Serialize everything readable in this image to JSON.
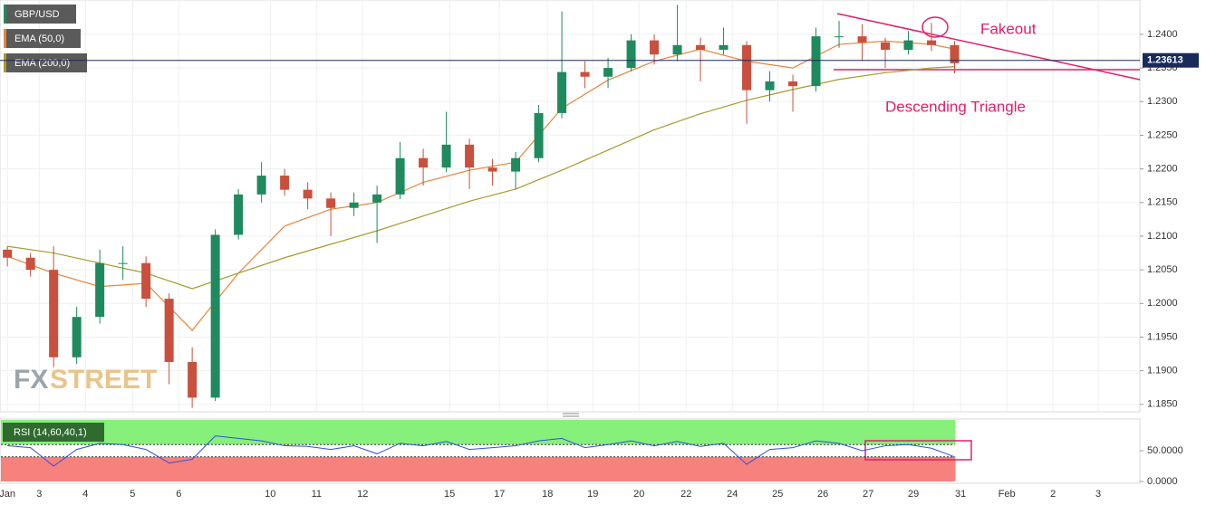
{
  "chart_data": [
    {
      "type": "candlestick",
      "title": "GBP/USD",
      "x": [
        0,
        0.5,
        1,
        1.5,
        2,
        2.5,
        3,
        3.5,
        4,
        4.5,
        5,
        5.5,
        6,
        6.5,
        7,
        7.5,
        8,
        8.5,
        9,
        9.5,
        10,
        10.5,
        11,
        11.5,
        12,
        12.5,
        13,
        13.5,
        14,
        14.5,
        15,
        15.5,
        16,
        16.5,
        17,
        17.5,
        18,
        18.5,
        19,
        19.5,
        20,
        20.5
      ],
      "open": [
        1.208,
        1.2068,
        1.205,
        1.192,
        1.198,
        1.206,
        1.206,
        1.2007,
        1.1913,
        1.186,
        1.2102,
        1.2162,
        1.219,
        1.2169,
        1.2156,
        1.2142,
        1.215,
        1.2162,
        1.2216,
        1.2202,
        1.2236,
        1.2202,
        1.2196,
        1.2216,
        1.2283,
        1.2344,
        1.2337,
        1.235,
        1.2391,
        1.237,
        1.2384,
        1.2377,
        1.2384,
        1.2317,
        1.233,
        1.2323,
        1.2397,
        1.2397,
        1.2388,
        1.2377,
        1.2391,
        1.2384
      ],
      "high": [
        1.2085,
        1.2075,
        1.2085,
        1.1995,
        1.208,
        1.2085,
        1.207,
        1.2015,
        1.1935,
        1.211,
        1.217,
        1.221,
        1.22,
        1.218,
        1.2165,
        1.2165,
        1.2175,
        1.224,
        1.223,
        1.2285,
        1.2245,
        1.2215,
        1.2225,
        1.2295,
        1.2434,
        1.236,
        1.2365,
        1.24,
        1.24,
        1.2444,
        1.2395,
        1.241,
        1.239,
        1.2345,
        1.234,
        1.241,
        1.242,
        1.2415,
        1.2395,
        1.2405,
        1.2417,
        1.239
      ],
      "low": [
        1.2055,
        1.204,
        1.1905,
        1.191,
        1.197,
        1.2035,
        1.1995,
        1.188,
        1.1845,
        1.1855,
        1.2095,
        1.215,
        1.216,
        1.214,
        1.21,
        1.213,
        1.209,
        1.2155,
        1.2175,
        1.2195,
        1.217,
        1.2175,
        1.217,
        1.221,
        1.2275,
        1.232,
        1.232,
        1.2345,
        1.2355,
        1.236,
        1.233,
        1.237,
        1.2267,
        1.23,
        1.2285,
        1.2315,
        1.238,
        1.236,
        1.235,
        1.237,
        1.2375,
        1.2342
      ],
      "close": [
        1.2068,
        1.205,
        1.192,
        1.198,
        1.206,
        1.206,
        1.2007,
        1.1913,
        1.186,
        1.2102,
        1.2162,
        1.219,
        1.2169,
        1.2156,
        1.2142,
        1.215,
        1.2162,
        1.2216,
        1.2202,
        1.2236,
        1.2202,
        1.2196,
        1.2216,
        1.2283,
        1.2344,
        1.2337,
        1.235,
        1.2391,
        1.237,
        1.2384,
        1.2377,
        1.2384,
        1.2317,
        1.233,
        1.2323,
        1.2397,
        1.2397,
        1.2388,
        1.2377,
        1.2391,
        1.2384,
        1.2357
      ],
      "up_color": "#1f8a5e",
      "down_color": "#c8503c",
      "lines": [
        {
          "name": "EMA (50,0)",
          "color": "#e8853a",
          "x": [
            0,
            1,
            2,
            3,
            4,
            5,
            6,
            7,
            8,
            9,
            10,
            11,
            12,
            13,
            14,
            15,
            16,
            17,
            18,
            19,
            20,
            20.5
          ],
          "values": [
            1.207,
            1.2045,
            1.2025,
            1.203,
            1.196,
            1.2045,
            1.2115,
            1.214,
            1.215,
            1.218,
            1.2198,
            1.221,
            1.229,
            1.2332,
            1.236,
            1.2378,
            1.236,
            1.235,
            1.2385,
            1.239,
            1.2385,
            1.2378
          ]
        },
        {
          "name": "EMA (200,0)",
          "color": "#a89a2c",
          "x": [
            0,
            1,
            2,
            3,
            4,
            5,
            6,
            7,
            8,
            9,
            10,
            11,
            12,
            13,
            14,
            15,
            16,
            17,
            18,
            19,
            20,
            20.5
          ],
          "values": [
            1.2085,
            1.2075,
            1.206,
            1.2045,
            1.2022,
            1.2045,
            1.2068,
            1.2088,
            1.2108,
            1.213,
            1.2152,
            1.217,
            1.2198,
            1.2228,
            1.2258,
            1.2282,
            1.2302,
            1.2318,
            1.2333,
            1.2343,
            1.235,
            1.2352
          ]
        }
      ],
      "last_price": 1.23613,
      "annotations": [
        "Fakeout",
        "Descending Triangle"
      ],
      "watermark": [
        "FX",
        "STREET"
      ],
      "xlim": [
        -0.16,
        24.51
      ],
      "xticks": [
        {
          "value": 0,
          "label": "Jan"
        },
        {
          "value": 0.69,
          "label": "3"
        },
        {
          "value": 1.69,
          "label": "4"
        },
        {
          "value": 2.71,
          "label": "5"
        },
        {
          "value": 3.71,
          "label": "6"
        },
        {
          "value": 5.69,
          "label": "10"
        },
        {
          "value": 6.69,
          "label": "11"
        },
        {
          "value": 7.69,
          "label": "12"
        },
        {
          "value": 9.57,
          "label": "15"
        },
        {
          "value": 10.65,
          "label": "17"
        },
        {
          "value": 11.69,
          "label": "18"
        },
        {
          "value": 12.67,
          "label": "19"
        },
        {
          "value": 13.67,
          "label": "20"
        },
        {
          "value": 14.69,
          "label": "22"
        },
        {
          "value": 15.69,
          "label": "24"
        },
        {
          "value": 16.67,
          "label": "25"
        },
        {
          "value": 17.65,
          "label": "26"
        },
        {
          "value": 18.63,
          "label": "27"
        },
        {
          "value": 19.61,
          "label": "29"
        },
        {
          "value": 20.63,
          "label": "31"
        },
        {
          "value": 21.63,
          "label": "Feb"
        },
        {
          "value": 22.63,
          "label": "2"
        },
        {
          "value": 23.61,
          "label": "3"
        }
      ],
      "ylim": [
        1.1839,
        1.2451
      ],
      "yticks": [
        {
          "value": 1.24,
          "label": "1.2400"
        },
        {
          "value": 1.235,
          "label": "1.2350"
        },
        {
          "value": 1.23,
          "label": "1.2300"
        },
        {
          "value": 1.225,
          "label": "1.2250"
        },
        {
          "value": 1.22,
          "label": "1.2200"
        },
        {
          "value": 1.215,
          "label": "1.2150"
        },
        {
          "value": 1.21,
          "label": "1.2100"
        },
        {
          "value": 1.205,
          "label": "1.2050"
        },
        {
          "value": 1.2,
          "label": "1.2000"
        },
        {
          "value": 1.195,
          "label": "1.1950"
        },
        {
          "value": 1.19,
          "label": "1.1900"
        },
        {
          "value": 1.185,
          "label": "1.1850"
        }
      ],
      "grid": true
    },
    {
      "type": "line",
      "title": "RSI (14,60,40,1)",
      "series": [
        {
          "color": "#3050e0",
          "x": [
            0,
            0.5,
            1,
            1.5,
            2,
            2.5,
            3,
            3.5,
            4,
            4.5,
            5,
            5.5,
            6,
            6.5,
            7,
            7.5,
            8,
            8.5,
            9,
            9.5,
            10,
            10.5,
            11,
            11.5,
            12,
            12.5,
            13,
            13.5,
            14,
            14.5,
            15,
            15.5,
            16,
            16.5,
            17,
            17.5,
            18,
            18.5,
            19,
            19.5,
            20,
            20.5
          ],
          "values": [
            58,
            55,
            25,
            52,
            62,
            60,
            52,
            30,
            36,
            74,
            70,
            66,
            58,
            57,
            52,
            58,
            45,
            62,
            58,
            65,
            52,
            55,
            58,
            66,
            70,
            55,
            60,
            66,
            58,
            65,
            57,
            62,
            28,
            52,
            55,
            66,
            62,
            50,
            58,
            60,
            54,
            40
          ]
        }
      ],
      "upper": 60,
      "lower": 40,
      "upper_color": "#86f07a",
      "lower_color": "#f7817d",
      "ylim": [
        0,
        100
      ],
      "yticks": [
        {
          "value": 0,
          "label": "0.0000"
        },
        {
          "value": 50,
          "label": "50.0000"
        }
      ]
    }
  ]
}
